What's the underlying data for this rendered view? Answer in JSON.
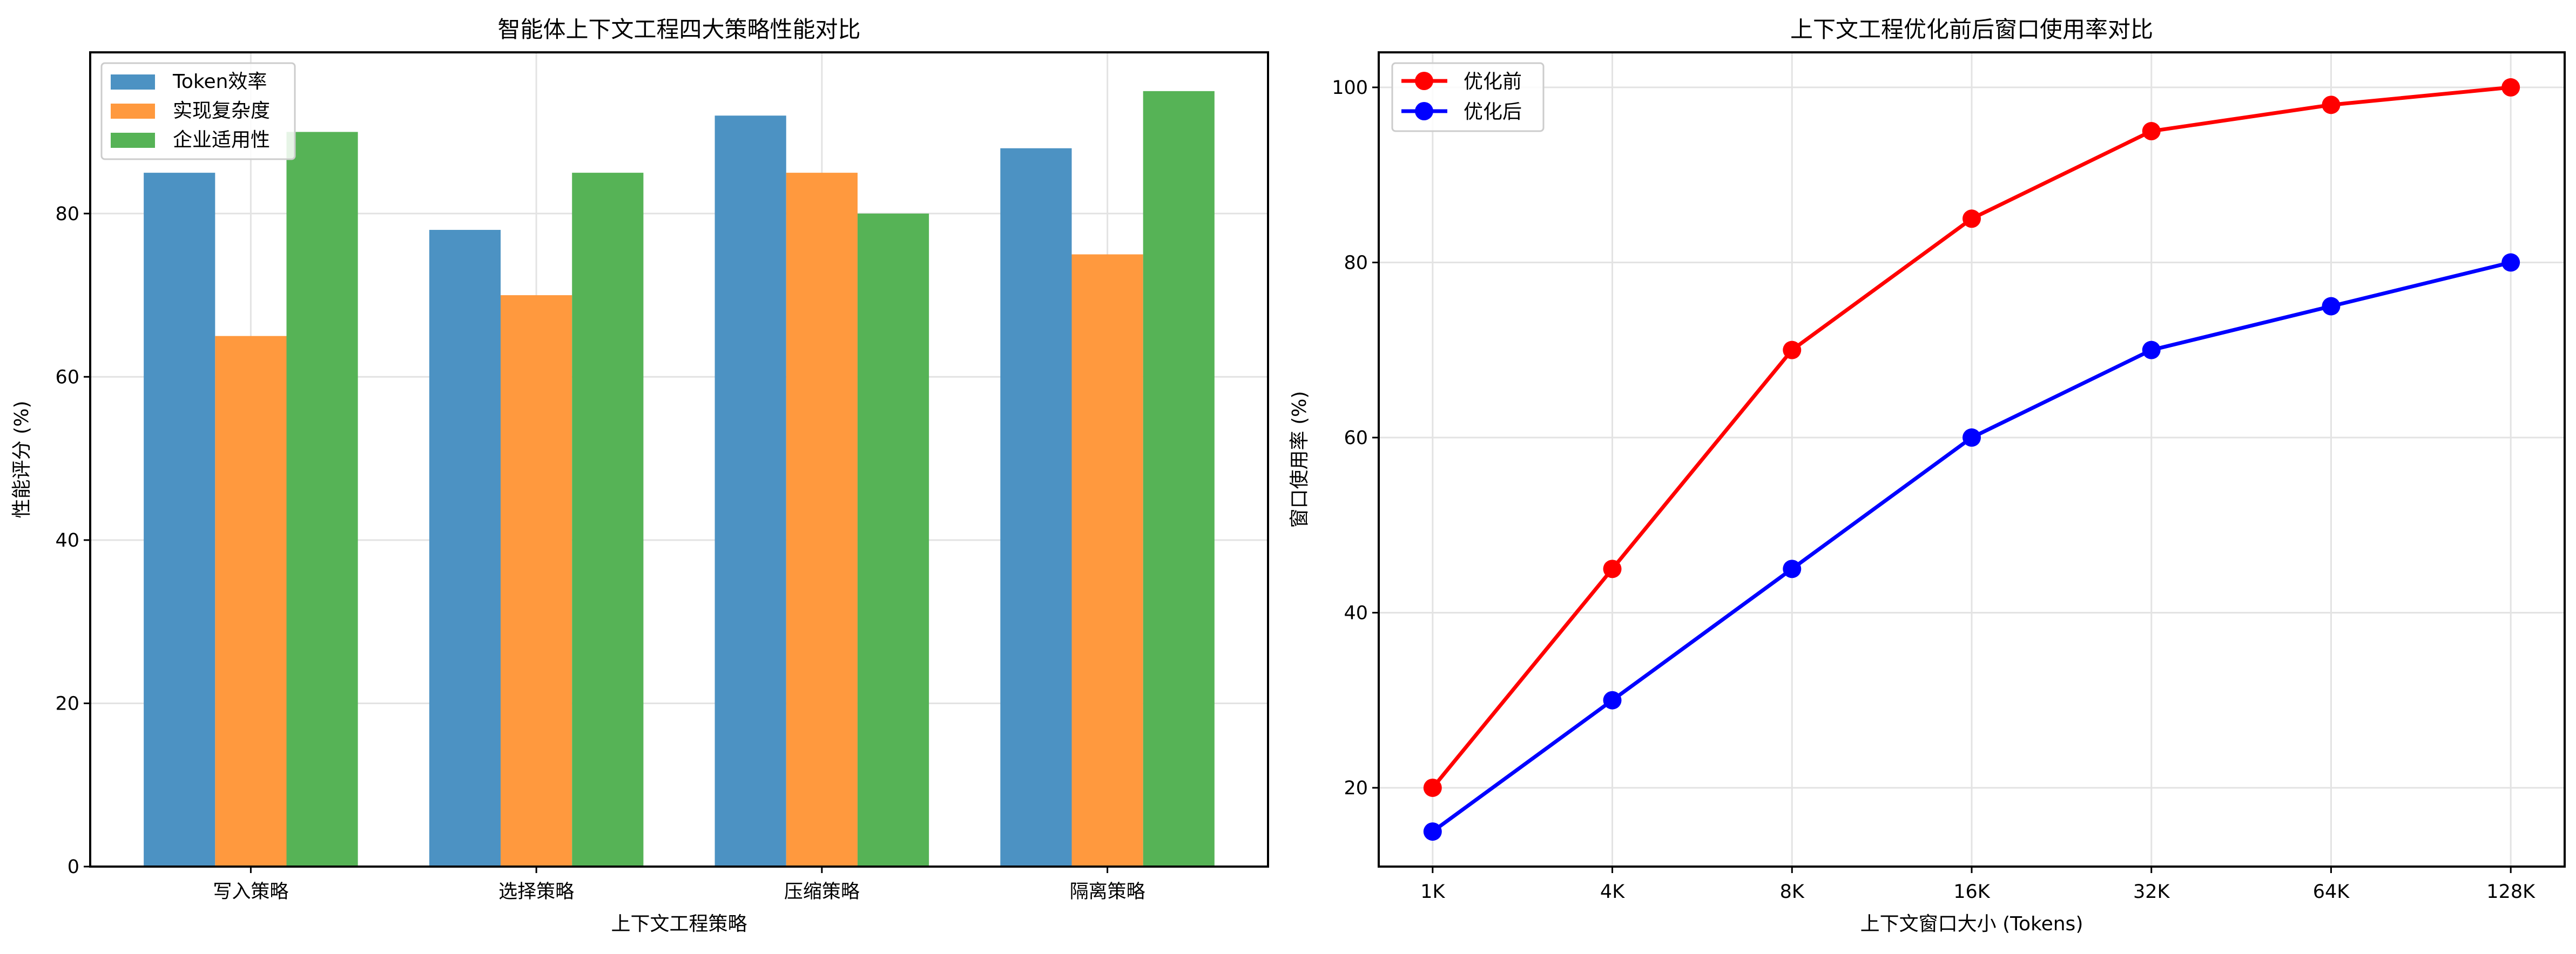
{
  "chart_data": [
    {
      "type": "bar",
      "title": "智能体上下文工程四大策略性能对比",
      "xlabel": "上下文工程策略",
      "ylabel": "性能评分 (%)",
      "categories": [
        "写入策略",
        "选择策略",
        "压缩策略",
        "隔离策略"
      ],
      "series": [
        {
          "name": "Token效率",
          "values": [
            85,
            78,
            92,
            88
          ],
          "color": "#4c92c3"
        },
        {
          "name": "实现复杂度",
          "values": [
            65,
            70,
            85,
            75
          ],
          "color": "#ff993e"
        },
        {
          "name": "企业适用性",
          "values": [
            90,
            85,
            80,
            95
          ],
          "color": "#56b356"
        }
      ],
      "ylim": [
        0,
        99.75
      ],
      "yticks": [
        0,
        20,
        40,
        60,
        80
      ],
      "grid": true,
      "legend": "top-left"
    },
    {
      "type": "line",
      "title": "上下文工程优化前后窗口使用率对比",
      "xlabel": "上下文窗口大小 (Tokens)",
      "ylabel": "窗口使用率 (%)",
      "categories": [
        "1K",
        "4K",
        "8K",
        "16K",
        "32K",
        "64K",
        "128K"
      ],
      "series": [
        {
          "name": "优化前",
          "values": [
            20,
            45,
            70,
            85,
            95,
            98,
            100
          ],
          "color": "#ff0000"
        },
        {
          "name": "优化后",
          "values": [
            15,
            30,
            45,
            60,
            70,
            75,
            80
          ],
          "color": "#0000ff"
        }
      ],
      "ylim": [
        11,
        104
      ],
      "yticks": [
        20,
        40,
        60,
        80,
        100
      ],
      "grid": true,
      "legend": "top-left"
    }
  ]
}
